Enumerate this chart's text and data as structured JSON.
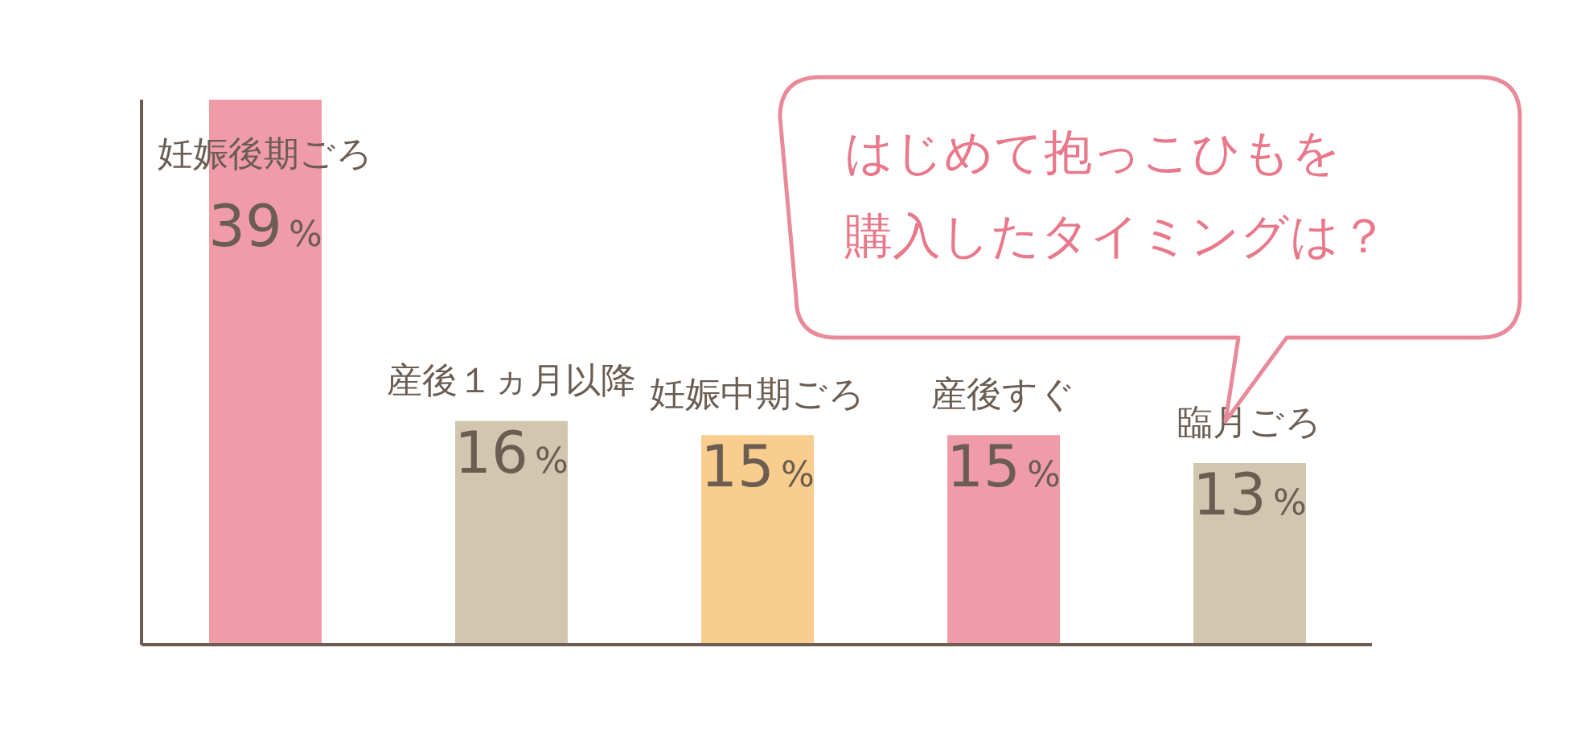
{
  "chart_data": {
    "type": "bar",
    "annotations": [
      "はじめて抱っこひもを",
      "購入したタイミングは？"
    ],
    "categories": [
      "妊娠後期ごろ",
      "産後１ヵ月以降",
      "妊娠中期ごろ",
      "産後すぐ",
      "臨月ごろ"
    ],
    "values": [
      39,
      16,
      15,
      15,
      13
    ],
    "colors": [
      "#f09ca8",
      "#d1c6b0",
      "#f9cd8e",
      "#f09ca8",
      "#d1c6b0"
    ],
    "value_labels": [
      "39%",
      "16%",
      "15%",
      "15%",
      "13%"
    ],
    "grid": false,
    "legend": false
  }
}
